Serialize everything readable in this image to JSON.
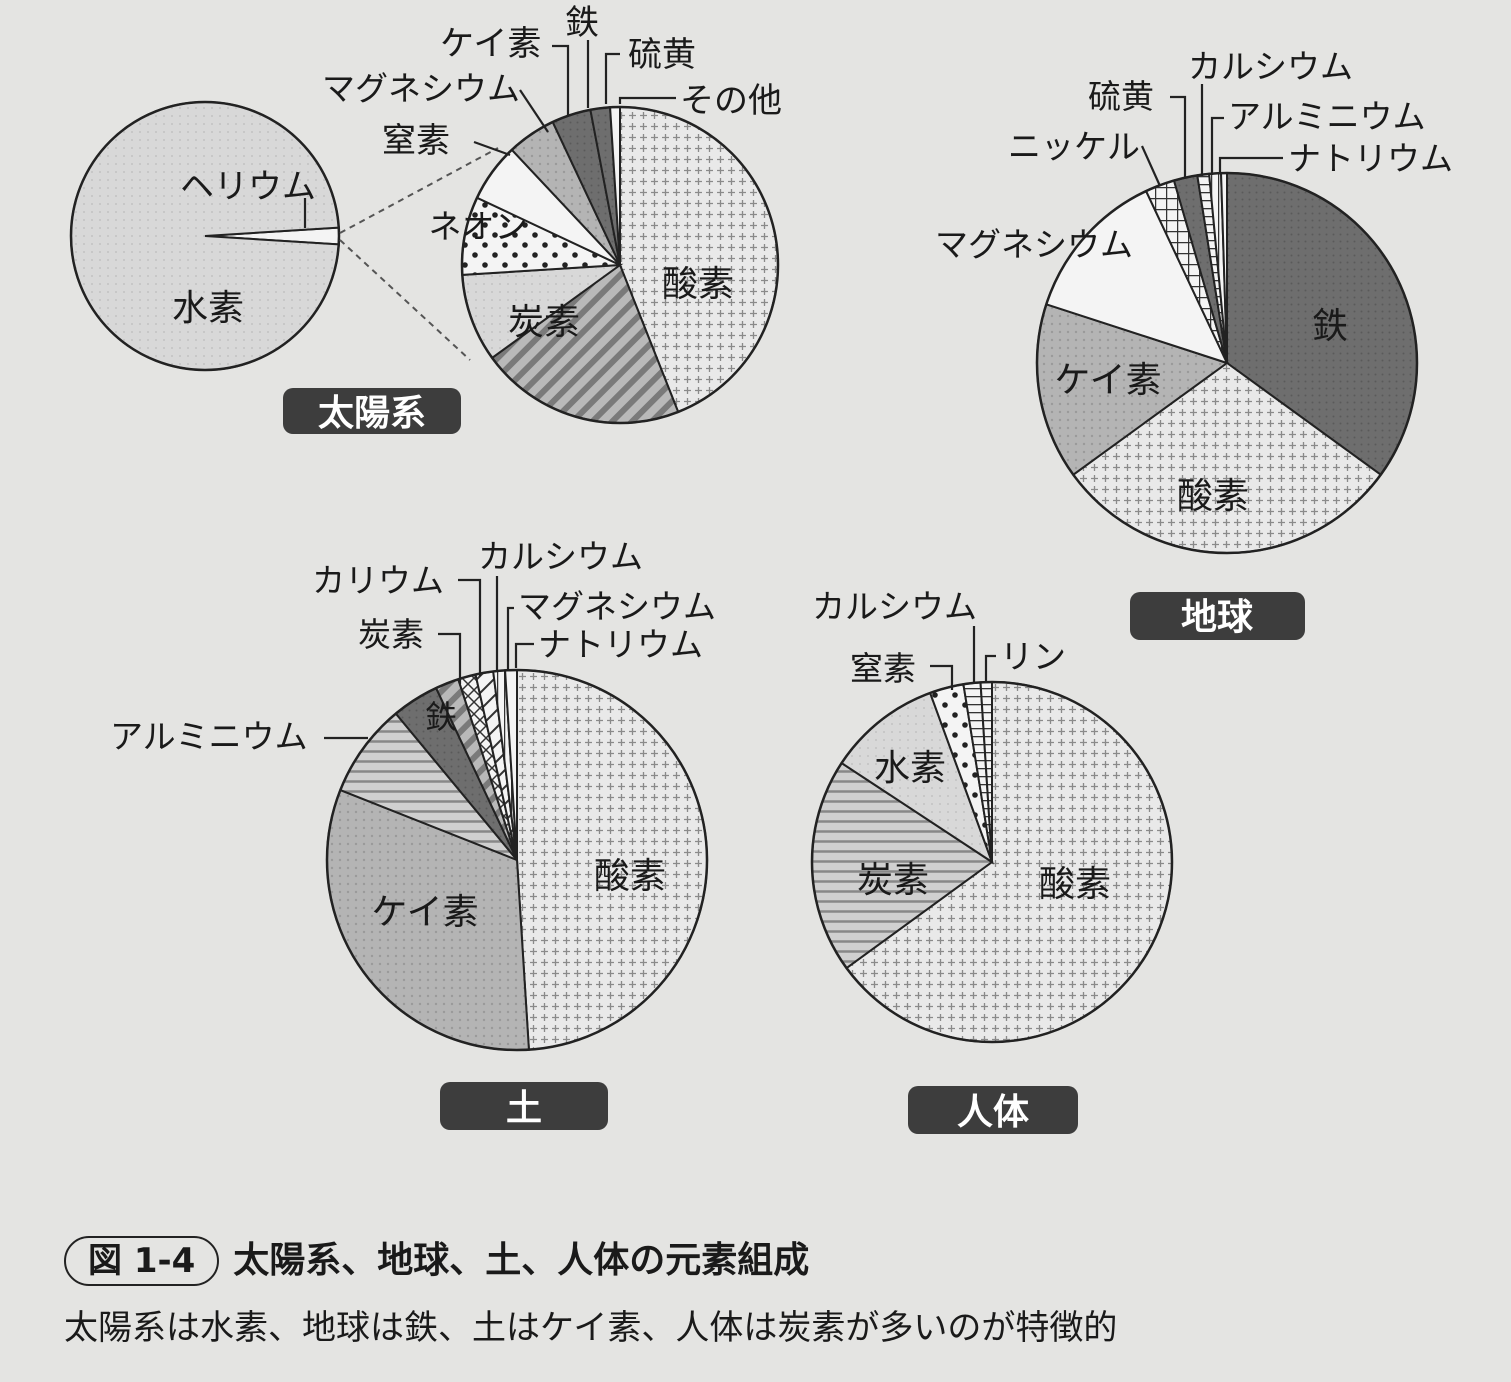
{
  "chart_data": [
    {
      "type": "pie",
      "title": "太陽系",
      "slices": [
        {
          "label": "水素",
          "value": 98.0
        },
        {
          "label": "ヘリウム",
          "value": 2.0
        }
      ],
      "breakdown_of": "ヘリウム",
      "detail_slices": [
        {
          "label": "酸素",
          "value": 44.0
        },
        {
          "label": "炭素",
          "value": 21.0
        },
        {
          "label": "ネオン",
          "value": 9.0
        },
        {
          "label": "窒素",
          "value": 8.0
        },
        {
          "label": "マグネシウム",
          "value": 6.0
        },
        {
          "label": "ケイ素",
          "value": 5.0
        },
        {
          "label": "鉄",
          "value": 4.0
        },
        {
          "label": "硫黄",
          "value": 2.0
        },
        {
          "label": "その他",
          "value": 1.0
        }
      ]
    },
    {
      "type": "pie",
      "title": "地球",
      "slices": [
        {
          "label": "鉄",
          "value": 35.0
        },
        {
          "label": "酸素",
          "value": 30.0
        },
        {
          "label": "ケイ素",
          "value": 15.0
        },
        {
          "label": "マグネシウム",
          "value": 13.0
        },
        {
          "label": "ニッケル",
          "value": 2.5
        },
        {
          "label": "硫黄",
          "value": 2.0
        },
        {
          "label": "カルシウム",
          "value": 1.0
        },
        {
          "label": "アルミニウム",
          "value": 1.0
        },
        {
          "label": "ナトリウム",
          "value": 0.5
        }
      ]
    },
    {
      "type": "pie",
      "title": "土",
      "slices": [
        {
          "label": "酸素",
          "value": 49.0
        },
        {
          "label": "ケイ素",
          "value": 32.0
        },
        {
          "label": "アルミニウム",
          "value": 8.0
        },
        {
          "label": "鉄",
          "value": 4.0
        },
        {
          "label": "炭素",
          "value": 2.0
        },
        {
          "label": "カリウム",
          "value": 1.5
        },
        {
          "label": "カルシウム",
          "value": 1.5
        },
        {
          "label": "マグネシウム",
          "value": 1.0
        },
        {
          "label": "ナトリウム",
          "value": 1.0
        }
      ]
    },
    {
      "type": "pie",
      "title": "人体",
      "slices": [
        {
          "label": "酸素",
          "value": 64.0
        },
        {
          "label": "炭素",
          "value": 19.0
        },
        {
          "label": "水素",
          "value": 10.0
        },
        {
          "label": "窒素",
          "value": 3.0
        },
        {
          "label": "カルシウム",
          "value": 1.5
        },
        {
          "label": "リン",
          "value": 1.0
        }
      ]
    }
  ],
  "caption": {
    "figure_label": "図 1-4",
    "title": "太陽系、地球、土、人体の元素組成",
    "subtitle": "太陽系は水素、地球は鉄、土はケイ素、人体は炭素が多いのが特徴的"
  }
}
